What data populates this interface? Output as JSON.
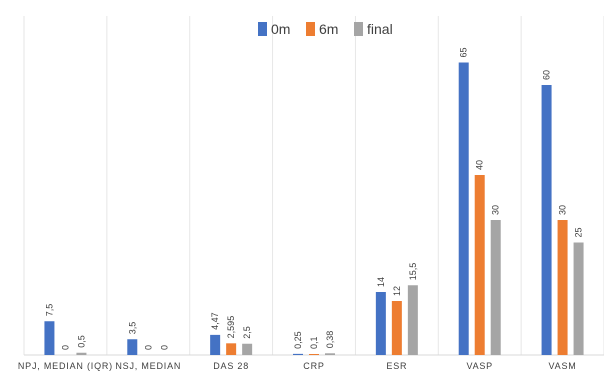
{
  "chart_data": {
    "type": "bar",
    "categories": [
      "NPJ, MEDIAN (IQR)",
      "NSJ, MEDIAN",
      "DAS 28",
      "CRP",
      "ESR",
      "VASP",
      "VASM"
    ],
    "series": [
      {
        "name": "0m",
        "color": "#4472C4",
        "values": [
          7.5,
          3.5,
          4.47,
          0.25,
          14,
          65,
          60
        ],
        "labels": [
          "7,5",
          "3,5",
          "4,47",
          "0,25",
          "14",
          "65",
          "60"
        ]
      },
      {
        "name": "6m",
        "color": "#ED7D31",
        "values": [
          0,
          0,
          2.595,
          0.1,
          12,
          40,
          30
        ],
        "labels": [
          "0",
          "0",
          "2,595",
          "0,1",
          "12",
          "40",
          "30"
        ]
      },
      {
        "name": "final",
        "color": "#A5A5A5",
        "values": [
          0.5,
          0,
          2.5,
          0.38,
          15.5,
          30,
          25
        ],
        "labels": [
          "0,5",
          "0",
          "2,5",
          "0,38",
          "15,5",
          "30",
          "25"
        ]
      }
    ],
    "ylim": [
      0,
      70
    ],
    "legend_position": "top",
    "grid": "vertical category separators"
  }
}
